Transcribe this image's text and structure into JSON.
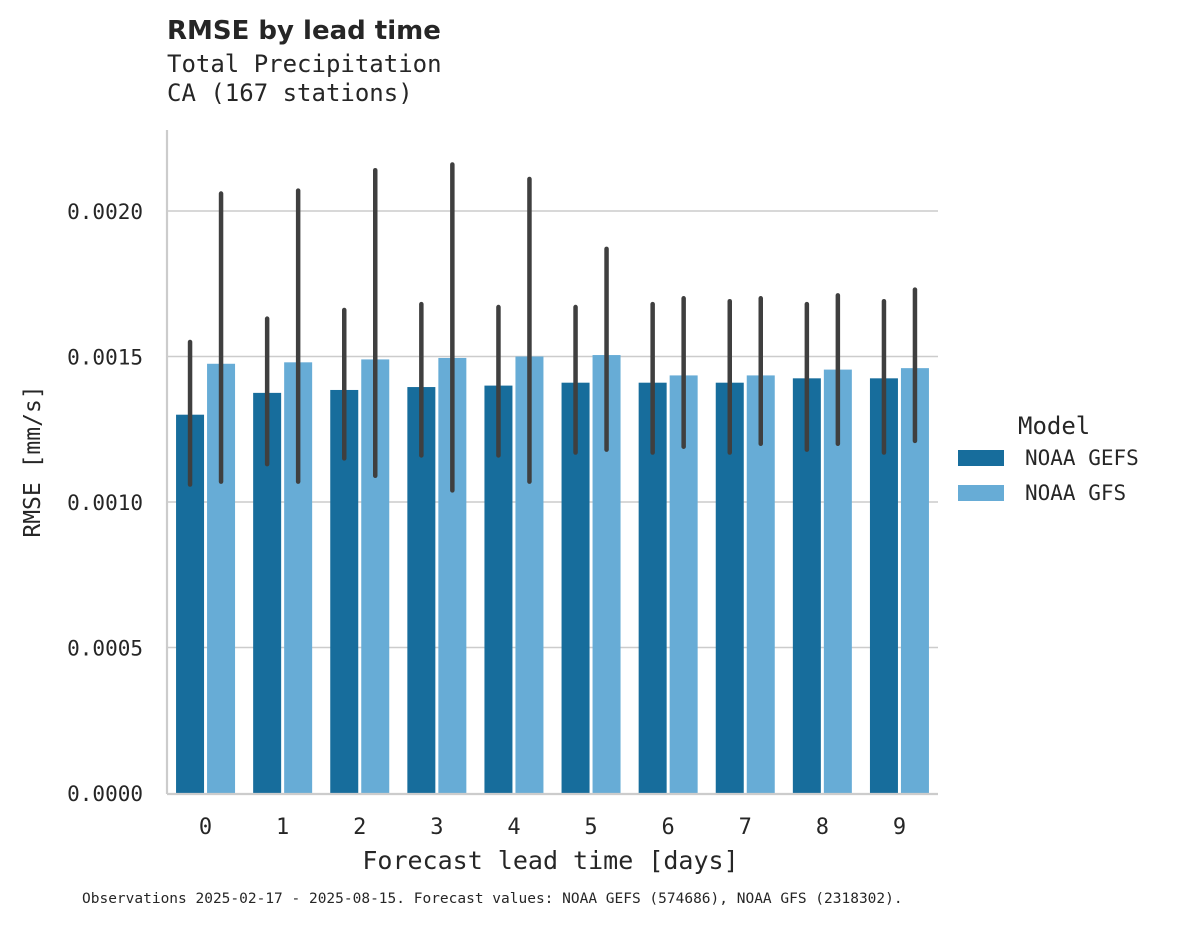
{
  "title": "RMSE by lead time",
  "subtitle_line1": "Total Precipitation",
  "subtitle_line2": "CA (167 stations)",
  "footer": "Observations 2025-02-17 - 2025-08-15. Forecast values: NOAA GEFS (574686), NOAA GFS (2318302).",
  "legend": {
    "title": "Model",
    "items": [
      {
        "label": "NOAA GEFS",
        "color": "#176d9c"
      },
      {
        "label": "NOAA GFS",
        "color": "#67acd6"
      }
    ]
  },
  "chart_data": {
    "type": "bar",
    "xlabel": "Forecast lead time [days]",
    "ylabel": "RMSE [mm/s]",
    "categories": [
      "0",
      "1",
      "2",
      "3",
      "4",
      "5",
      "6",
      "7",
      "8",
      "9"
    ],
    "ylim": [
      0,
      0.00228
    ],
    "yticks": [
      "0.0000",
      "0.0005",
      "0.0010",
      "0.0015",
      "0.0020"
    ],
    "grid": true,
    "legend_position": "right",
    "series": [
      {
        "name": "NOAA GEFS",
        "color": "#176d9c",
        "values": [
          0.0013,
          0.001375,
          0.001385,
          0.001395,
          0.0014,
          0.00141,
          0.00141,
          0.00141,
          0.001425,
          0.001425
        ],
        "ci_low": [
          0.00106,
          0.00113,
          0.00115,
          0.00116,
          0.00116,
          0.00117,
          0.00117,
          0.00117,
          0.00118,
          0.00117
        ],
        "ci_high": [
          0.00155,
          0.00163,
          0.00166,
          0.00168,
          0.00167,
          0.00167,
          0.00168,
          0.00169,
          0.00168,
          0.00169
        ]
      },
      {
        "name": "NOAA GFS",
        "color": "#67acd6",
        "values": [
          0.001475,
          0.00148,
          0.00149,
          0.001495,
          0.0015,
          0.001505,
          0.001435,
          0.001435,
          0.001455,
          0.00146
        ],
        "ci_low": [
          0.00107,
          0.00107,
          0.00109,
          0.00104,
          0.00107,
          0.00118,
          0.00119,
          0.0012,
          0.0012,
          0.00121
        ],
        "ci_high": [
          0.00206,
          0.00207,
          0.00214,
          0.00216,
          0.00211,
          0.00187,
          0.0017,
          0.0017,
          0.00171,
          0.00173
        ]
      }
    ]
  }
}
